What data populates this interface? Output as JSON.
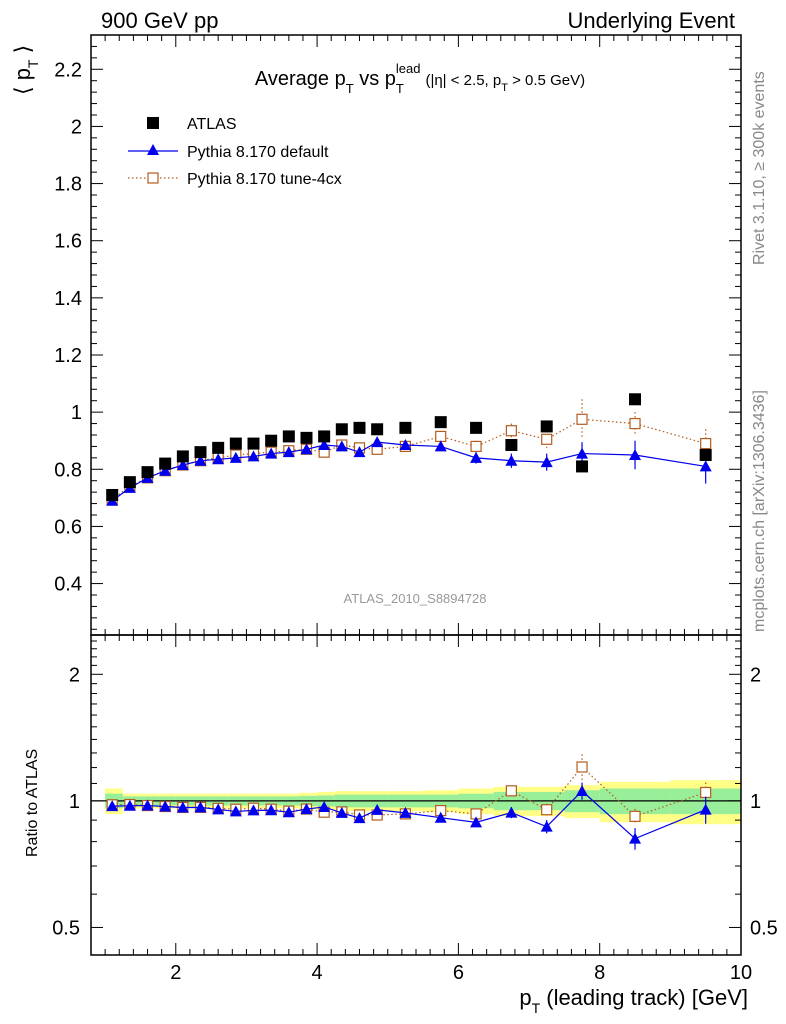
{
  "header": {
    "left": "900 GeV pp",
    "right": "Underlying Event"
  },
  "side_labels": {
    "rivet": "Rivet 3.1.10, ≥ 300k events",
    "mcplots": "mcplots.cern.ch [arXiv:1306.3436]"
  },
  "chart_data": {
    "type": "line",
    "title": {
      "main": "Average p",
      "main_sub": "T",
      "vs": " vs p",
      "vs_sub": "T",
      "vs_sup": "lead",
      "cuts": "(|η| < 2.5, p",
      "cuts_sub": "T",
      "cuts_end": " > 0.5 GeV)"
    },
    "analysis_id": "ATLAS_2010_S8894728",
    "xlabel": {
      "main": "p",
      "sub": "T",
      "rest": " (leading track) [GeV]"
    },
    "ylabel": {
      "open": "⟨ p",
      "sub": "T",
      "close": " ⟩"
    },
    "ratio_ylabel": "Ratio to ATLAS",
    "xlim": [
      0.8,
      10.0
    ],
    "ylim": [
      0.22,
      2.32
    ],
    "ratio_ylim": [
      0.43,
      2.48
    ],
    "ratio_scale": "log",
    "x_ticks": [
      2,
      4,
      6,
      8,
      10
    ],
    "x_tick_labels": [
      "2",
      "4",
      "6",
      "8",
      "10"
    ],
    "y_ticks": [
      0.4,
      0.6,
      0.8,
      1.0,
      1.2,
      1.4,
      1.6,
      1.8,
      2.0,
      2.2
    ],
    "y_tick_labels": [
      "0.4",
      "0.6",
      "0.8",
      "1",
      "1.2",
      "1.4",
      "1.6",
      "1.8",
      "2",
      "2.2"
    ],
    "ratio_ticks": [
      0.5,
      1,
      2
    ],
    "ratio_tick_labels": [
      "0.5",
      "1",
      "2"
    ],
    "legend_position": "top-left",
    "x": [
      1.1,
      1.35,
      1.6,
      1.85,
      2.1,
      2.35,
      2.6,
      2.85,
      3.1,
      3.35,
      3.6,
      3.85,
      4.1,
      4.35,
      4.6,
      4.85,
      5.25,
      5.75,
      6.25,
      6.75,
      7.25,
      7.75,
      8.5,
      9.5
    ],
    "x_bin_edges": [
      1.0,
      1.25,
      1.5,
      1.75,
      2.0,
      2.25,
      2.5,
      2.75,
      3.0,
      3.25,
      3.5,
      3.75,
      4.0,
      4.25,
      4.5,
      4.75,
      5.0,
      5.5,
      6.0,
      6.5,
      7.0,
      7.5,
      8.0,
      9.0,
      10.0
    ],
    "series": [
      {
        "name": "ATLAS",
        "marker": "square",
        "color": "#000000",
        "y": [
          0.71,
          0.755,
          0.79,
          0.82,
          0.845,
          0.86,
          0.875,
          0.89,
          0.89,
          0.9,
          0.915,
          0.91,
          0.915,
          0.94,
          0.945,
          0.94,
          0.945,
          0.965,
          0.945,
          0.885,
          0.95,
          0.81,
          1.045,
          0.85
        ]
      },
      {
        "name": "Pythia 8.170 default",
        "marker": "triangle",
        "color": "#0000ee",
        "line": "solid",
        "y": [
          0.69,
          0.735,
          0.77,
          0.795,
          0.815,
          0.83,
          0.835,
          0.84,
          0.845,
          0.855,
          0.86,
          0.87,
          0.885,
          0.88,
          0.86,
          0.895,
          0.885,
          0.88,
          0.84,
          0.83,
          0.825,
          0.855,
          0.85,
          0.81
        ],
        "y_err": [
          0.005,
          0.005,
          0.005,
          0.005,
          0.005,
          0.005,
          0.005,
          0.005,
          0.005,
          0.006,
          0.007,
          0.008,
          0.009,
          0.01,
          0.012,
          0.013,
          0.012,
          0.015,
          0.02,
          0.025,
          0.03,
          0.04,
          0.05,
          0.06
        ]
      },
      {
        "name": "Pythia 8.170 tune-4cx",
        "marker": "open-square",
        "color": "#b35c1e",
        "line": "dotted",
        "y": [
          0.695,
          0.74,
          0.77,
          0.795,
          0.815,
          0.83,
          0.84,
          0.85,
          0.855,
          0.86,
          0.865,
          0.87,
          0.86,
          0.885,
          0.875,
          0.87,
          0.88,
          0.915,
          0.88,
          0.935,
          0.905,
          0.975,
          0.96,
          0.89
        ],
        "y_err": [
          0.005,
          0.005,
          0.005,
          0.005,
          0.005,
          0.005,
          0.005,
          0.005,
          0.005,
          0.006,
          0.007,
          0.008,
          0.009,
          0.01,
          0.012,
          0.013,
          0.012,
          0.015,
          0.02,
          0.025,
          0.03,
          0.07,
          0.04,
          0.05
        ]
      }
    ],
    "ratio_band": {
      "inner_color": "#99ee99",
      "outer_color": "#ffff88",
      "inner_halfwidth": [
        0.04,
        0.025,
        0.025,
        0.025,
        0.025,
        0.025,
        0.025,
        0.025,
        0.025,
        0.025,
        0.025,
        0.028,
        0.03,
        0.035,
        0.035,
        0.035,
        0.035,
        0.035,
        0.04,
        0.05,
        0.05,
        0.06,
        0.07,
        0.07
      ],
      "outer_halfwidth": [
        0.07,
        0.04,
        0.04,
        0.04,
        0.04,
        0.04,
        0.04,
        0.04,
        0.04,
        0.04,
        0.04,
        0.045,
        0.05,
        0.055,
        0.055,
        0.055,
        0.055,
        0.06,
        0.07,
        0.08,
        0.08,
        0.09,
        0.11,
        0.12
      ]
    }
  }
}
